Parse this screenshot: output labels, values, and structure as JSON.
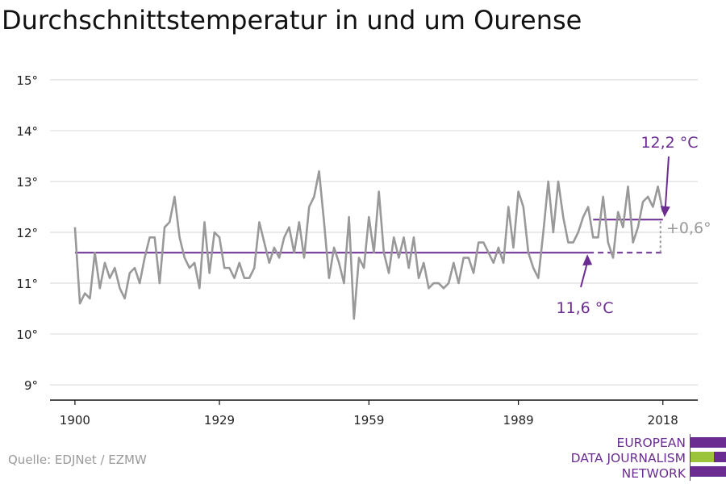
{
  "title": "Durchschnittstemperatur in und um Ourense",
  "source": "Quelle: EDJNet / EZMW",
  "logo": {
    "lines": [
      "EUROPEAN",
      "DATA JOURNALISM",
      "NETWORK"
    ],
    "colors": {
      "purple": "#6b2c91",
      "green": "#9bc43b"
    }
  },
  "colors": {
    "series": "#999999",
    "reference": "#6b2c91",
    "diff": "#999999",
    "grid": "#dddddd",
    "axis": "#111111"
  },
  "chart_data": {
    "type": "line",
    "title": "Durchschnittstemperatur in und um Ourense",
    "xlabel": "",
    "ylabel": "",
    "xlim": [
      1895,
      2025
    ],
    "ylim": [
      8.7,
      15.3
    ],
    "x_ticks": [
      1900,
      1929,
      1959,
      1989,
      2018
    ],
    "y_ticks": [
      9,
      10,
      11,
      12,
      13,
      14,
      15
    ],
    "y_tick_labels": [
      "9°",
      "10°",
      "11°",
      "12°",
      "13°",
      "14°",
      "15°"
    ],
    "grid": true,
    "series": [
      {
        "start_year": 1900,
        "end_year": 2018,
        "values": [
          12.1,
          10.6,
          10.8,
          10.7,
          11.6,
          10.9,
          11.4,
          11.1,
          11.3,
          10.9,
          10.7,
          11.2,
          11.3,
          11.0,
          11.5,
          11.9,
          11.9,
          11.0,
          12.1,
          12.2,
          12.7,
          11.9,
          11.5,
          11.3,
          11.4,
          10.9,
          12.2,
          11.2,
          12.0,
          11.9,
          11.3,
          11.3,
          11.1,
          11.4,
          11.1,
          11.1,
          11.3,
          12.2,
          11.8,
          11.4,
          11.7,
          11.5,
          11.9,
          12.1,
          11.6,
          12.2,
          11.5,
          12.5,
          12.7,
          13.2,
          12.2,
          11.1,
          11.7,
          11.4,
          11.0,
          12.3,
          10.3,
          11.5,
          11.3,
          12.3,
          11.6,
          12.8,
          11.6,
          11.2,
          11.9,
          11.5,
          11.9,
          11.3,
          11.9,
          11.1,
          11.4,
          10.9,
          11.0,
          11.0,
          10.9,
          11.0,
          11.4,
          11.0,
          11.5,
          11.5,
          11.2,
          11.8,
          11.8,
          11.6,
          11.4,
          11.7,
          11.4,
          12.5,
          11.7,
          12.8,
          12.5,
          11.6,
          11.3,
          11.1,
          12.0,
          13.0,
          12.0,
          13.0,
          12.3,
          11.8,
          11.8,
          12.0,
          12.3,
          12.5,
          11.9,
          11.9,
          12.7,
          11.8,
          11.5,
          12.4,
          12.1,
          12.9,
          11.8,
          12.1,
          12.6,
          12.7,
          12.5,
          12.9,
          12.4
        ]
      }
    ],
    "reference_line": {
      "value": 11.6,
      "from": 1900,
      "to": 2003,
      "dashed_to": 2018,
      "label": "11,6 °C"
    },
    "recent_line": {
      "value": 12.25,
      "from": 2004,
      "to": 2018,
      "label": "12,2 °C"
    },
    "difference": {
      "label": "+0,6°"
    }
  }
}
